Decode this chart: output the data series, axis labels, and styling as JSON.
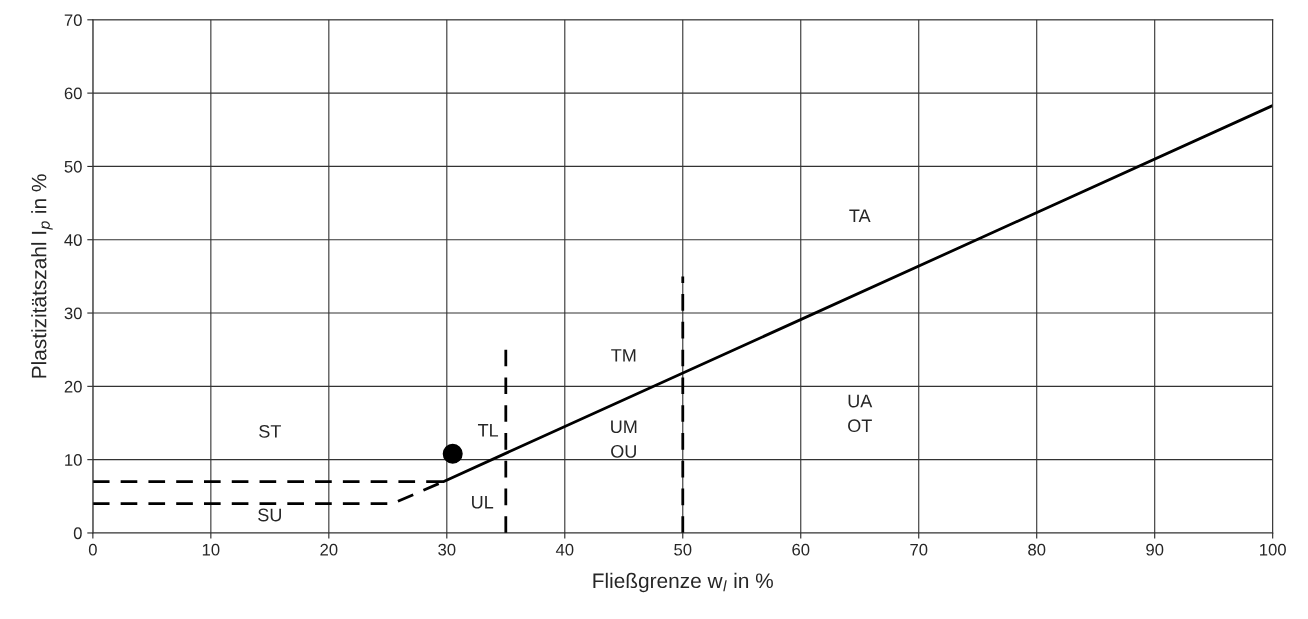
{
  "chart_data": {
    "type": "line",
    "xlabel": "Fließgrenze w$_{l}$ in %",
    "ylabel": "Plastizitätszahl I$_{p}$ in %",
    "xlim": [
      0,
      100
    ],
    "ylim": [
      0,
      70
    ],
    "xticks": [
      0,
      10,
      20,
      30,
      40,
      50,
      60,
      70,
      80,
      90,
      100
    ],
    "yticks": [
      0,
      10,
      20,
      30,
      40,
      50,
      60,
      70
    ],
    "grid": true,
    "legend": false,
    "series": [
      {
        "color": "#000000",
        "line_style": "solid",
        "x": [
          29.7,
          100
        ],
        "values": [
          7,
          58.3
        ]
      },
      {
        "color": "#000000",
        "line_style": "dashed",
        "x": [
          0,
          29.7
        ],
        "values": [
          7,
          7
        ]
      },
      {
        "color": "#000000",
        "line_style": "dashed",
        "x": [
          0,
          25.4,
          29.7
        ],
        "values": [
          4,
          4,
          7
        ]
      },
      {
        "color": "#000000",
        "line_style": "dashed",
        "x": [
          35,
          35
        ],
        "values": [
          0,
          25
        ]
      },
      {
        "color": "#000000",
        "line_style": "dashed",
        "x": [
          50,
          50
        ],
        "values": [
          0,
          35
        ]
      },
      {
        "type": "scatter",
        "color": "#000000",
        "marker": "circle",
        "x": [
          30.5
        ],
        "values": [
          10.8
        ]
      }
    ],
    "annotations": [
      "ST",
      "SU",
      "TL",
      "UL",
      "TM",
      "UM\nOU",
      "UA\nOT",
      "TA"
    ]
  }
}
